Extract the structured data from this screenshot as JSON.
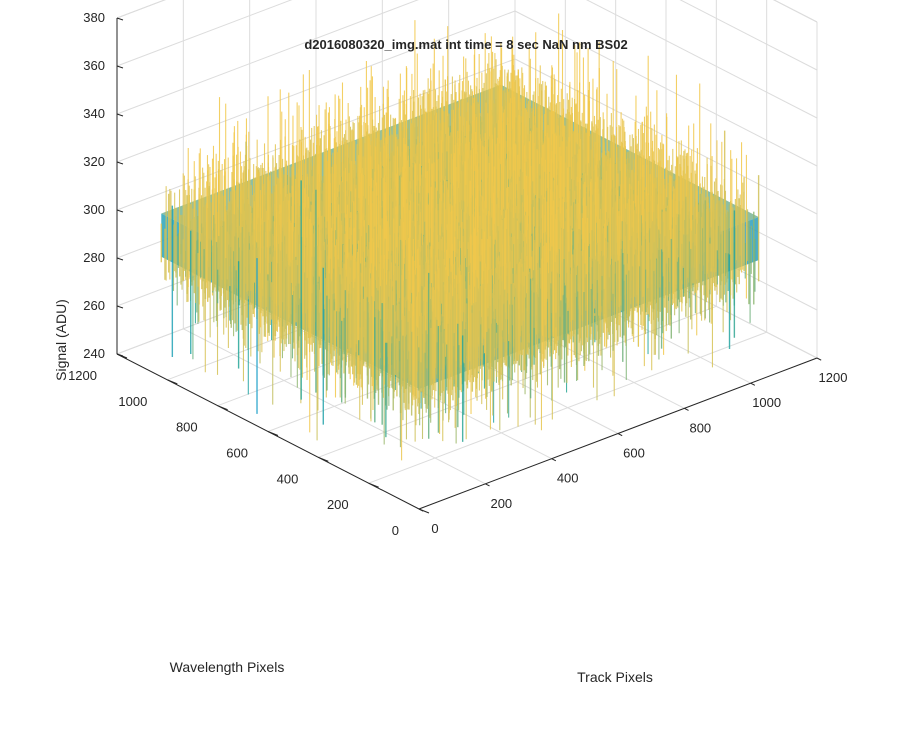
{
  "chart_data": {
    "type": "surface",
    "title": "d2016080320_img.mat int time = 8 sec  NaN nm BS02",
    "xlabel": "Track Pixels",
    "ylabel": "Wavelength Pixels",
    "zlabel": "Signal (ADU)",
    "x_ticks": [
      "0",
      "200",
      "400",
      "600",
      "800",
      "1000",
      "1200"
    ],
    "y_ticks": [
      "0",
      "200",
      "400",
      "600",
      "800",
      "1000",
      "1200"
    ],
    "z_ticks": [
      "240",
      "260",
      "280",
      "300",
      "320",
      "340",
      "360",
      "380"
    ],
    "xlim": [
      0,
      1200
    ],
    "ylim": [
      0,
      1200
    ],
    "zlim": [
      240,
      380
    ],
    "x_data_range": [
      0,
      1024
    ],
    "y_data_range": [
      0,
      1024
    ],
    "z_mean": 300,
    "z_min": 245,
    "z_max": 380,
    "grid": true,
    "box": true,
    "colormap": "parula",
    "colors": {
      "low": "#1f9fd8",
      "mid": "#26a69a",
      "high": "#cfc15a",
      "peak": "#f2c84b",
      "grid": "#dcdcdc",
      "axis": "#262626"
    }
  }
}
